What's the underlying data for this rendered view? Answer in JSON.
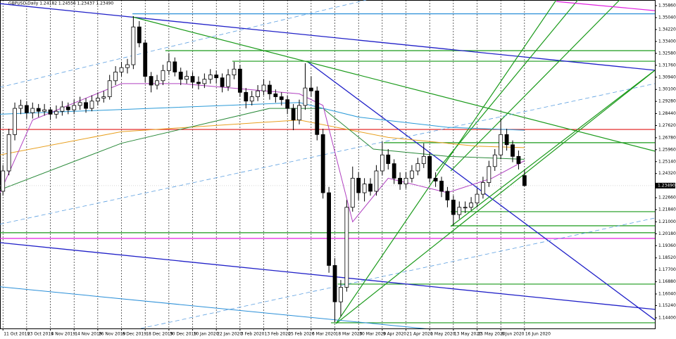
{
  "chart_data": {
    "type": "candlestick",
    "title": "GBPUSD,Daily  1.24182 1.24556 1.23437 1.23490",
    "x": [
      0,
      2,
      4,
      6,
      8,
      10,
      12,
      14,
      16,
      18,
      20,
      22,
      24,
      26,
      28,
      30,
      32,
      34,
      36,
      38,
      40,
      42,
      44,
      46,
      48,
      50,
      52,
      54,
      56,
      58,
      60,
      62,
      64,
      66,
      68,
      70,
      72,
      74,
      76,
      78,
      80,
      82,
      84,
      86,
      88,
      90,
      92,
      94,
      96,
      98,
      100,
      102,
      104,
      106,
      108,
      110,
      112,
      114,
      116,
      118,
      120,
      122,
      124,
      126,
      128,
      130,
      132,
      134,
      136,
      138,
      140,
      142,
      144,
      146,
      148,
      150,
      152,
      154,
      156,
      158,
      160,
      162,
      164,
      166,
      168,
      170,
      172,
      174,
      176
    ],
    "ohlc": [
      [
        1.231,
        1.249,
        1.228,
        1.245
      ],
      [
        1.245,
        1.274,
        1.242,
        1.27
      ],
      [
        1.27,
        1.292,
        1.266,
        1.288
      ],
      [
        1.288,
        1.294,
        1.284,
        1.29
      ],
      [
        1.29,
        1.293,
        1.281,
        1.285
      ],
      [
        1.285,
        1.292,
        1.281,
        1.288
      ],
      [
        1.288,
        1.291,
        1.282,
        1.286
      ],
      [
        1.286,
        1.291,
        1.283,
        1.287
      ],
      [
        1.287,
        1.289,
        1.28,
        1.284
      ],
      [
        1.284,
        1.29,
        1.281,
        1.286
      ],
      [
        1.286,
        1.293,
        1.283,
        1.289
      ],
      [
        1.289,
        1.292,
        1.284,
        1.287
      ],
      [
        1.287,
        1.294,
        1.284,
        1.29
      ],
      [
        1.29,
        1.296,
        1.287,
        1.292
      ],
      [
        1.292,
        1.295,
        1.285,
        1.288
      ],
      [
        1.288,
        1.297,
        1.286,
        1.293
      ],
      [
        1.293,
        1.299,
        1.29,
        1.295
      ],
      [
        1.295,
        1.3,
        1.292,
        1.296
      ],
      [
        1.296,
        1.311,
        1.294,
        1.307
      ],
      [
        1.307,
        1.317,
        1.304,
        1.313
      ],
      [
        1.313,
        1.32,
        1.31,
        1.316
      ],
      [
        1.316,
        1.322,
        1.312,
        1.318
      ],
      [
        1.318,
        1.3514,
        1.315,
        1.344
      ],
      [
        1.344,
        1.348,
        1.33,
        1.333
      ],
      [
        1.333,
        1.335,
        1.306,
        1.31
      ],
      [
        1.31,
        1.313,
        1.299,
        1.304
      ],
      [
        1.304,
        1.311,
        1.301,
        1.307
      ],
      [
        1.307,
        1.318,
        1.304,
        1.314
      ],
      [
        1.314,
        1.326,
        1.311,
        1.32
      ],
      [
        1.32,
        1.323,
        1.31,
        1.313
      ],
      [
        1.313,
        1.316,
        1.304,
        1.308
      ],
      [
        1.308,
        1.314,
        1.305,
        1.31
      ],
      [
        1.31,
        1.313,
        1.302,
        1.306
      ],
      [
        1.306,
        1.31,
        1.301,
        1.305
      ],
      [
        1.305,
        1.312,
        1.302,
        1.308
      ],
      [
        1.308,
        1.315,
        1.305,
        1.311
      ],
      [
        1.311,
        1.314,
        1.305,
        1.309
      ],
      [
        1.309,
        1.312,
        1.299,
        1.303
      ],
      [
        1.303,
        1.315,
        1.3,
        1.311
      ],
      [
        1.311,
        1.32,
        1.308,
        1.315
      ],
      [
        1.315,
        1.318,
        1.296,
        1.299
      ],
      [
        1.299,
        1.302,
        1.288,
        1.293
      ],
      [
        1.293,
        1.3,
        1.29,
        1.296
      ],
      [
        1.296,
        1.304,
        1.293,
        1.3
      ],
      [
        1.3,
        1.308,
        1.297,
        1.304
      ],
      [
        1.304,
        1.307,
        1.294,
        1.298
      ],
      [
        1.298,
        1.301,
        1.292,
        1.296
      ],
      [
        1.296,
        1.299,
        1.29,
        1.294
      ],
      [
        1.294,
        1.297,
        1.284,
        1.288
      ],
      [
        1.288,
        1.291,
        1.273,
        1.28
      ],
      [
        1.28,
        1.294,
        1.277,
        1.29
      ],
      [
        1.29,
        1.319,
        1.287,
        1.302
      ],
      [
        1.302,
        1.31,
        1.296,
        1.3
      ],
      [
        1.3,
        1.303,
        1.266,
        1.27
      ],
      [
        1.27,
        1.274,
        1.226,
        1.23
      ],
      [
        1.23,
        1.234,
        1.175,
        1.18
      ],
      [
        1.18,
        1.185,
        1.141,
        1.155
      ],
      [
        1.155,
        1.17,
        1.145,
        1.165
      ],
      [
        1.165,
        1.225,
        1.162,
        1.22
      ],
      [
        1.22,
        1.248,
        1.217,
        1.24
      ],
      [
        1.24,
        1.244,
        1.225,
        1.23
      ],
      [
        1.23,
        1.24,
        1.224,
        1.236
      ],
      [
        1.236,
        1.24,
        1.228,
        1.231
      ],
      [
        1.231,
        1.249,
        1.228,
        1.245
      ],
      [
        1.245,
        1.265,
        1.242,
        1.256
      ],
      [
        1.256,
        1.26,
        1.246,
        1.25
      ],
      [
        1.25,
        1.253,
        1.236,
        1.24
      ],
      [
        1.24,
        1.244,
        1.232,
        1.236
      ],
      [
        1.236,
        1.244,
        1.233,
        1.24
      ],
      [
        1.24,
        1.249,
        1.237,
        1.245
      ],
      [
        1.245,
        1.254,
        1.242,
        1.25
      ],
      [
        1.25,
        1.264,
        1.247,
        1.255
      ],
      [
        1.255,
        1.258,
        1.237,
        1.24
      ],
      [
        1.24,
        1.244,
        1.234,
        1.238
      ],
      [
        1.238,
        1.241,
        1.227,
        1.231
      ],
      [
        1.231,
        1.234,
        1.22,
        1.225
      ],
      [
        1.225,
        1.228,
        1.2075,
        1.215
      ],
      [
        1.215,
        1.224,
        1.212,
        1.22
      ],
      [
        1.22,
        1.224,
        1.216,
        1.22
      ],
      [
        1.22,
        1.227,
        1.218,
        1.223
      ],
      [
        1.223,
        1.233,
        1.22,
        1.229
      ],
      [
        1.229,
        1.241,
        1.226,
        1.237
      ],
      [
        1.237,
        1.252,
        1.234,
        1.248
      ],
      [
        1.248,
        1.26,
        1.245,
        1.256
      ],
      [
        1.256,
        1.2812,
        1.253,
        1.27
      ],
      [
        1.27,
        1.274,
        1.259,
        1.263
      ],
      [
        1.263,
        1.266,
        1.251,
        1.255
      ],
      [
        1.255,
        1.259,
        1.246,
        1.25
      ],
      [
        1.2418,
        1.2456,
        1.2344,
        1.2349
      ]
    ],
    "xlim": [
      -1,
      220
    ],
    "ylim": [
      1.1367,
      1.3625
    ],
    "grid": true,
    "xticks": [
      {
        "value": 0,
        "label": "11 Oct 2019"
      },
      {
        "value": 8,
        "label": "23 Oct 2019"
      },
      {
        "value": 16,
        "label": "4 Nov 2019"
      },
      {
        "value": 24,
        "label": "14 Nov 2019"
      },
      {
        "value": 32,
        "label": "26 Nov 2019"
      },
      {
        "value": 40,
        "label": "6 Dec 2019"
      },
      {
        "value": 48,
        "label": "18 Dec 2019"
      },
      {
        "value": 56,
        "label": "30 Dec 2019"
      },
      {
        "value": 64,
        "label": "10 Jan 2020"
      },
      {
        "value": 72,
        "label": "22 Jan 2020"
      },
      {
        "value": 80,
        "label": "3 Feb 2020"
      },
      {
        "value": 88,
        "label": "13 Feb 2020"
      },
      {
        "value": 96,
        "label": "25 Feb 2020"
      },
      {
        "value": 104,
        "label": "6 Mar 2020"
      },
      {
        "value": 112,
        "label": "18 Mar 2020"
      },
      {
        "value": 120,
        "label": "30 Mar 2020"
      },
      {
        "value": 128,
        "label": "9 Apr 2020"
      },
      {
        "value": 136,
        "label": "21 Apr 2020"
      },
      {
        "value": 144,
        "label": "1 May 2020"
      },
      {
        "value": 152,
        "label": "13 May 2020"
      },
      {
        "value": 160,
        "label": "25 May 2020"
      },
      {
        "value": 168,
        "label": "6 Jun 2020"
      },
      {
        "value": 176,
        "label": "16 Jun 2020"
      }
    ],
    "yticks": [
      {
        "value": 1.3586,
        "label": "1.35860"
      },
      {
        "value": 1.3504,
        "label": "1.35040"
      },
      {
        "value": 1.3422,
        "label": "1.34220"
      },
      {
        "value": 1.334,
        "label": "1.33400"
      },
      {
        "value": 1.3258,
        "label": "1.32580"
      },
      {
        "value": 1.3176,
        "label": "1.31760"
      },
      {
        "value": 1.3094,
        "label": "1.30940"
      },
      {
        "value": 1.301,
        "label": "1.30100"
      },
      {
        "value": 1.2928,
        "label": "1.29280"
      },
      {
        "value": 1.2844,
        "label": "1.28440"
      },
      {
        "value": 1.2762,
        "label": "1.27620"
      },
      {
        "value": 1.2678,
        "label": "1.26780"
      },
      {
        "value": 1.2596,
        "label": "1.25960"
      },
      {
        "value": 1.2514,
        "label": "1.25140"
      },
      {
        "value": 1.2432,
        "label": "1.24320"
      },
      {
        "value": 1.2266,
        "label": "1.22660"
      },
      {
        "value": 1.2184,
        "label": "1.21840"
      },
      {
        "value": 1.21,
        "label": "1.21000"
      },
      {
        "value": 1.2018,
        "label": "1.20180"
      },
      {
        "value": 1.1936,
        "label": "1.19360"
      },
      {
        "value": 1.1852,
        "label": "1.18520"
      },
      {
        "value": 1.177,
        "label": "1.17700"
      },
      {
        "value": 1.1688,
        "label": "1.16880"
      },
      {
        "value": 1.1604,
        "label": "1.16040"
      },
      {
        "value": 1.1524,
        "label": "1.15240"
      },
      {
        "value": 1.144,
        "label": "1.14400"
      }
    ],
    "last_price": {
      "value": 1.2349,
      "label": "1.23490"
    },
    "hlines": [
      {
        "y": 1.2735,
        "x0": -1,
        "color": "#e01818"
      },
      {
        "y": 1.353,
        "x0": 43.7,
        "color": "#2a8fd8"
      },
      {
        "y": 1.3277,
        "x0": 54.8,
        "color": "#1a9a1a"
      },
      {
        "y": 1.3204,
        "x0": 77.4,
        "color": "#1a9a1a"
      },
      {
        "y": 1.2644,
        "x0": 128.5,
        "color": "#1a9a1a"
      },
      {
        "y": 1.217,
        "x0": 151.1,
        "color": "#1a9a1a"
      },
      {
        "y": 1.2073,
        "x0": 151.1,
        "color": "#1a9a1a"
      },
      {
        "y": 1.2025,
        "x0": -1,
        "color": "#1a9a1a"
      },
      {
        "y": 1.1986,
        "x0": -1,
        "color": "#e020e0"
      },
      {
        "y": 1.1672,
        "x0": 113,
        "color": "#1a9a1a"
      },
      {
        "y": 1.1406,
        "x0": 110.7,
        "color": "#1a9a1a"
      }
    ],
    "lines": [
      {
        "x": [
          -1,
          220
        ],
        "y": [
          1.36,
          1.3142
        ],
        "color": "#2020c8",
        "width": 1.3
      },
      {
        "x": [
          -1,
          220
        ],
        "y": [
          1.1957,
          1.1498
        ],
        "color": "#2020c8",
        "width": 1.3
      },
      {
        "x": [
          102.9,
          220
        ],
        "y": [
          1.3199,
          1.1426
        ],
        "color": "#2020c8",
        "width": 1.3
      },
      {
        "x": [
          43.7,
          220
        ],
        "y": [
          1.3509,
          1.2586
        ],
        "color": "#1a9a1a",
        "width": 1.2
      },
      {
        "x": [
          112.4,
          186.7
        ],
        "y": [
          1.1401,
          1.3625
        ],
        "color": "#1a9a1a",
        "width": 1.2
      },
      {
        "x": [
          146.3,
          194
        ],
        "y": [
          1.245,
          1.3625
        ],
        "color": "#1a9a1a",
        "width": 1.2
      },
      {
        "x": [
          151.1,
          208.1
        ],
        "y": [
          1.245,
          1.3625
        ],
        "color": "#1a9a1a",
        "width": 1.2
      },
      {
        "x": [
          112.4,
          220
        ],
        "y": [
          1.1401,
          1.3141
        ],
        "color": "#1a9a1a",
        "width": 1.2
      },
      {
        "x": [
          151.1,
          220
        ],
        "y": [
          1.2068,
          1.3142
        ],
        "color": "#1a9a1a",
        "width": 1.2
      },
      {
        "x": [
          -1,
          148.7
        ],
        "y": [
          1.1653,
          1.1353
        ],
        "color": "#2a8fd8",
        "width": 1
      },
      {
        "x": [
          -1,
          122.6
        ],
        "y": [
          1.3025,
          1.3625
        ],
        "color": "#5a9ee0",
        "width": 0.8,
        "dash": true
      },
      {
        "x": [
          -1,
          220
        ],
        "y": [
          1.2084,
          1.305
        ],
        "color": "#5a9ee0",
        "width": 0.8,
        "dash": true
      },
      {
        "x": [
          46.5,
          220
        ],
        "y": [
          1.1367,
          1.2126
        ],
        "color": "#5a9ee0",
        "width": 0.8,
        "dash": true
      },
      {
        "x": [
          186.7,
          220
        ],
        "y": [
          1.3615,
          1.3552
        ],
        "color": "#e020e0",
        "width": 1.2
      },
      {
        "x": [
          -1,
          40,
          100,
          130,
          160,
          176
        ],
        "y": [
          1.256,
          1.272,
          1.28,
          1.268,
          1.262,
          1.261
        ],
        "color": "#e8a020",
        "width": 1
      },
      {
        "x": [
          -1,
          40,
          90,
          108,
          125,
          150,
          176
        ],
        "y": [
          1.232,
          1.264,
          1.288,
          1.288,
          1.26,
          1.255,
          1.253
        ],
        "color": "#2a8a3a",
        "width": 1
      },
      {
        "x": [
          -1,
          100,
          120,
          150,
          176
        ],
        "y": [
          1.284,
          1.292,
          1.282,
          1.275,
          1.273
        ],
        "color": "#2a9ad8",
        "width": 1
      },
      {
        "x": [
          -1,
          10,
          40,
          60,
          100,
          108,
          118,
          130,
          150,
          165,
          176
        ],
        "y": [
          1.23,
          1.28,
          1.305,
          1.305,
          1.298,
          1.29,
          1.21,
          1.24,
          1.23,
          1.24,
          1.252
        ],
        "color": "#b040c0",
        "width": 1
      }
    ]
  }
}
